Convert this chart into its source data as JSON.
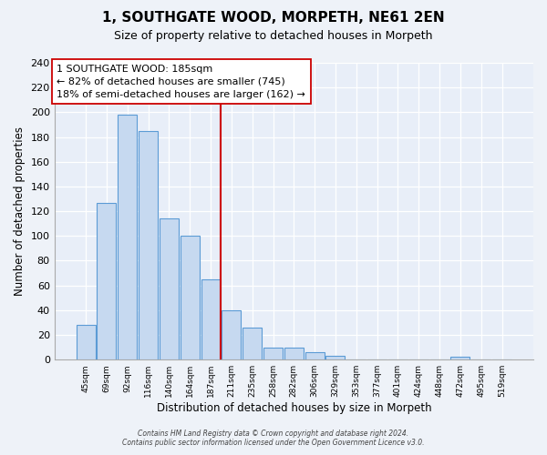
{
  "title": "1, SOUTHGATE WOOD, MORPETH, NE61 2EN",
  "subtitle": "Size of property relative to detached houses in Morpeth",
  "xlabel": "Distribution of detached houses by size in Morpeth",
  "ylabel": "Number of detached properties",
  "bin_labels": [
    "45sqm",
    "69sqm",
    "92sqm",
    "116sqm",
    "140sqm",
    "164sqm",
    "187sqm",
    "211sqm",
    "235sqm",
    "258sqm",
    "282sqm",
    "306sqm",
    "329sqm",
    "353sqm",
    "377sqm",
    "401sqm",
    "424sqm",
    "448sqm",
    "472sqm",
    "495sqm",
    "519sqm"
  ],
  "bar_heights": [
    28,
    127,
    198,
    185,
    114,
    100,
    65,
    40,
    26,
    10,
    10,
    6,
    3,
    0,
    0,
    0,
    0,
    0,
    2,
    0,
    0
  ],
  "bar_color": "#c6d9f0",
  "bar_edge_color": "#5b9bd5",
  "marker_index": 6,
  "marker_label": "1 SOUTHGATE WOOD: 185sqm",
  "annotation_line1": "← 82% of detached houses are smaller (745)",
  "annotation_line2": "18% of semi-detached houses are larger (162) →",
  "marker_color": "#cc0000",
  "ylim": [
    0,
    240
  ],
  "yticks": [
    0,
    20,
    40,
    60,
    80,
    100,
    120,
    140,
    160,
    180,
    200,
    220,
    240
  ],
  "footer_line1": "Contains HM Land Registry data © Crown copyright and database right 2024.",
  "footer_line2": "Contains public sector information licensed under the Open Government Licence v3.0.",
  "background_color": "#eef2f8",
  "plot_bg_color": "#e8eef8"
}
